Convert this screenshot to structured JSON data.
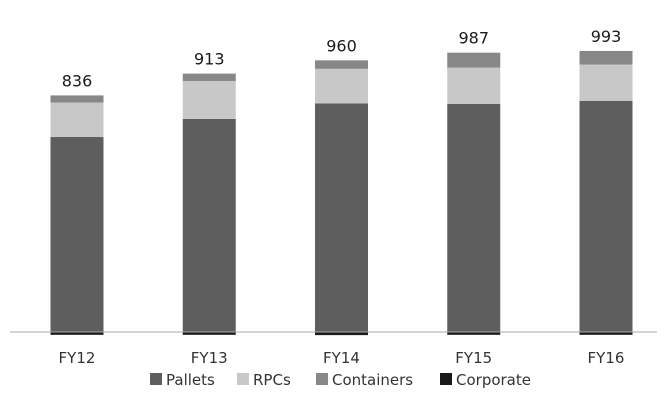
{
  "chart_data": {
    "type": "bar",
    "stacked": true,
    "categories": [
      "FY12",
      "FY13",
      "FY14",
      "FY15",
      "FY16"
    ],
    "totals": [
      "836",
      "913",
      "960",
      "987",
      "993"
    ],
    "series": [
      {
        "name": "Corporate",
        "color": "#1a1a1a",
        "values": [
          -10,
          -10,
          -11,
          -10,
          -10
        ]
      },
      {
        "name": "Pallets",
        "color": "#5e5e5e",
        "values": [
          689,
          753,
          808,
          806,
          817
        ]
      },
      {
        "name": "RPCs",
        "color": "#c8c8c8",
        "values": [
          122,
          134,
          122,
          128,
          128
        ]
      },
      {
        "name": "Containers",
        "color": "#878787",
        "values": [
          25,
          26,
          30,
          53,
          48
        ]
      }
    ],
    "legend_order": [
      "Pallets",
      "RPCs",
      "Containers",
      "Corporate"
    ],
    "ylim": [
      -15,
      1000
    ],
    "baseline_color": "#a9a9a9"
  }
}
